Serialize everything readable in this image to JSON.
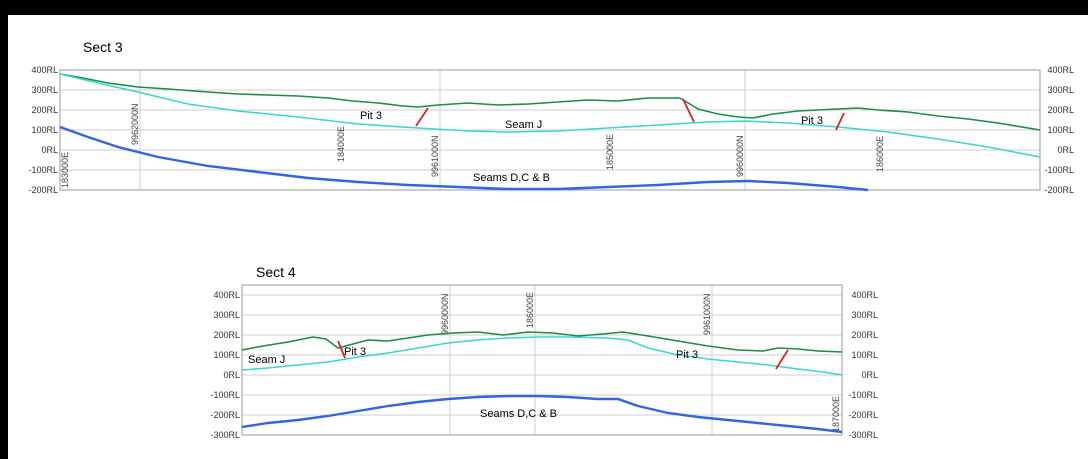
{
  "sections": [
    {
      "title": "Sect 3",
      "rl_labels": [
        "400RL",
        "300RL",
        "200RL",
        "100RL",
        "0RL",
        "-100RL",
        "-200RL"
      ],
      "coord_labels": [
        "183000E",
        "9962000N",
        "184000E",
        "9961000N",
        "185000E",
        "9960000N",
        "186000E"
      ],
      "annotations": [
        "Pit 3",
        "Seam J",
        "Pit 3",
        "Seams D,C & B"
      ],
      "colors": {
        "surface": "#1e8a4a",
        "seam_j": "#3fd6c8",
        "seams_dcb": "#3366dd",
        "pit": "#e02020"
      }
    },
    {
      "title": "Sect 4",
      "rl_labels": [
        "400RL",
        "300RL",
        "200RL",
        "100RL",
        "0RL",
        "-100RL",
        "-200RL",
        "-300RL"
      ],
      "coord_labels": [
        "9960000N",
        "186000E",
        "9961000N",
        "187000E"
      ],
      "annotations": [
        "Seam J",
        "Pit 3",
        "Pit 3",
        "Seams D,C & B"
      ],
      "colors": {
        "surface": "#1e8a4a",
        "seam_j": "#3fd6c8",
        "seams_dcb": "#3366dd",
        "pit": "#e02020"
      }
    }
  ]
}
